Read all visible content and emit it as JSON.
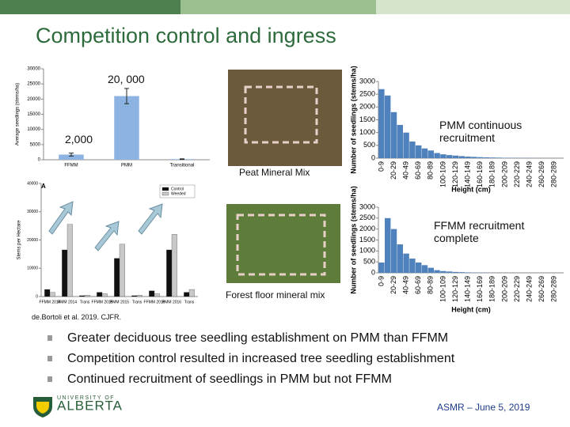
{
  "title": "Competition control and ingress",
  "chart_data": [
    {
      "type": "bar",
      "ylabel": "Average seedlings (stems/ha)",
      "categories": [
        "FFMM",
        "PMM",
        "Transitional"
      ],
      "values": [
        1700,
        21000,
        200
      ],
      "errors": [
        500,
        2500,
        100
      ],
      "color": "#8db3e2",
      "ylim": [
        0,
        30000
      ],
      "yticks": [
        0,
        5000,
        10000,
        15000,
        20000,
        25000,
        30000
      ]
    },
    {
      "type": "bar",
      "ylabel": "Stems per Hectare",
      "panel": "A",
      "categories": [
        "FFMM 2014",
        "PMM 2014",
        "Trans",
        "FFMM 2015",
        "PMM 2015",
        "Trans",
        "FFMM 2016",
        "PMM 2016",
        "Trans"
      ],
      "series": [
        {
          "name": "Control",
          "color": "#111111",
          "values": [
            2500,
            16500,
            300,
            1500,
            13500,
            300,
            2000,
            16500,
            1500
          ]
        },
        {
          "name": "Weeded",
          "color": "#c8c8c8",
          "values": [
            1500,
            25500,
            500,
            1000,
            18500,
            500,
            1000,
            22000,
            2500
          ]
        }
      ],
      "ylim": [
        0,
        40000
      ],
      "yticks": [
        0,
        10000,
        20000,
        30000,
        40000
      ],
      "legend": "upper right"
    },
    {
      "type": "bar",
      "ylabel": "Number of seedlings (stems/ha)",
      "xlabel": "Height (cm)",
      "categories": [
        "0-9",
        null,
        "20-29",
        null,
        "40-49",
        null,
        "60-69",
        null,
        "80-89",
        null,
        "100-109",
        null,
        "120-129",
        null,
        "140-149",
        null,
        "160-169",
        null,
        "180-189",
        null,
        "200-209",
        null,
        "220-229",
        null,
        "240-249",
        null,
        "260-269",
        null,
        "280-289",
        null
      ],
      "values": [
        2700,
        2450,
        1800,
        1300,
        1000,
        650,
        500,
        380,
        300,
        200,
        150,
        120,
        100,
        80,
        60,
        50,
        40,
        30,
        25,
        20,
        15,
        10,
        8,
        5,
        5,
        3,
        2,
        2,
        0,
        0
      ],
      "color": "#4f81bd",
      "ylim": [
        0,
        3000
      ],
      "yticks": [
        0,
        500,
        1000,
        1500,
        2000,
        2500,
        3000
      ]
    },
    {
      "type": "bar",
      "ylabel": "Number of seedlings (stems/ha)",
      "xlabel": "Height (cm)",
      "categories": [
        "0-9",
        null,
        "20-29",
        null,
        "40-49",
        null,
        "60-69",
        null,
        "80-89",
        null,
        "100-109",
        null,
        "120-129",
        null,
        "140-149",
        null,
        "160-169",
        null,
        "180-189",
        null,
        "200-209",
        null,
        "220-229",
        null,
        "240-249",
        null,
        "260-269",
        null,
        "280-289",
        null
      ],
      "values": [
        470,
        2500,
        2000,
        1300,
        880,
        650,
        470,
        350,
        230,
        120,
        80,
        60,
        40,
        30,
        20,
        10,
        10,
        5,
        5,
        3,
        2,
        2,
        0,
        0,
        0,
        0,
        0,
        0,
        0,
        0
      ],
      "color": "#4f81bd",
      "ylim": [
        0,
        3000
      ],
      "yticks": [
        0,
        500,
        1000,
        1500,
        2000,
        2500,
        3000
      ]
    }
  ],
  "annotations": {
    "pmm_peak": "20, 000",
    "ffmm_peak": "2,000",
    "pmm_note": "PMM continuous recruitment",
    "ffmm_note": "FFMM recruitment complete",
    "photo_top": "Peat Mineral Mix",
    "photo_bottom": "Forest floor mineral mix"
  },
  "citation": "de.Bortoli et al. 2019. CJFR.",
  "bullets": [
    "Greater deciduous tree seedling establishment on PMM than FFMM",
    "Competition control resulted in increased tree seedling establishment",
    "Continued recruitment of seedlings in PMM but not FFMM"
  ],
  "footer": "ASMR – June 5, 2019",
  "logo": {
    "top": "UNIVERSITY OF",
    "name": "ALBERTA"
  }
}
